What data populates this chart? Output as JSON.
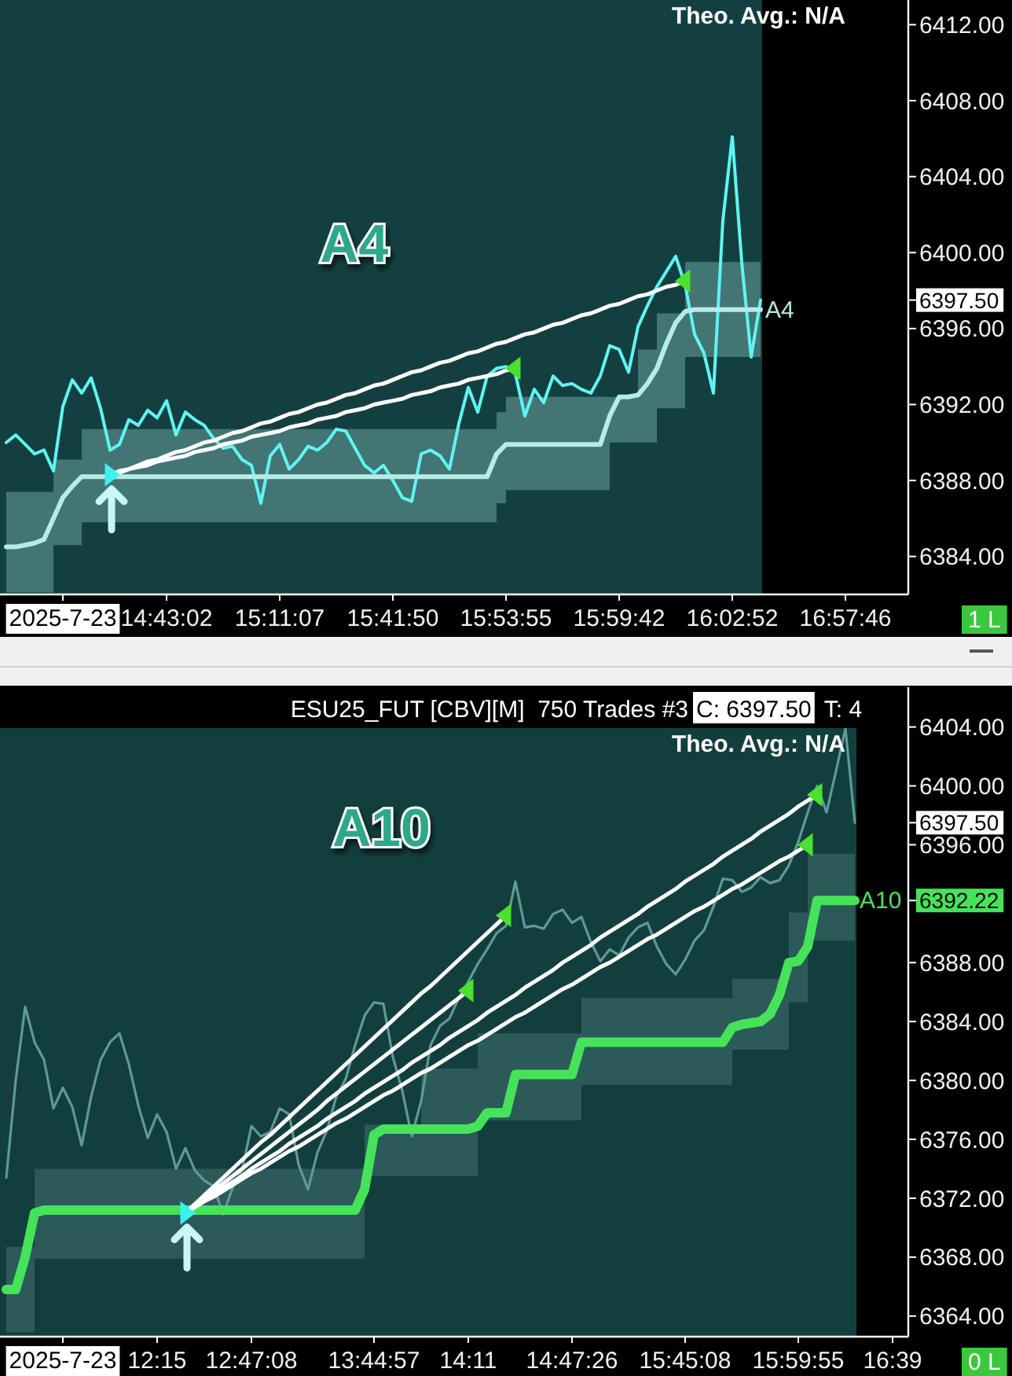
{
  "chart_data": [
    {
      "type": "line",
      "subtitle": "Theo. Avg.: N/A",
      "ylim": [
        6382,
        6413.3
      ],
      "categories": [
        null,
        null,
        null,
        null,
        null,
        null,
        "2025-7-23",
        null,
        null,
        null,
        null,
        null,
        null,
        null,
        null,
        null,
        null,
        "14:43:02",
        null,
        null,
        null,
        null,
        null,
        null,
        null,
        null,
        null,
        null,
        null,
        "15:11:07",
        null,
        null,
        null,
        null,
        null,
        null,
        null,
        null,
        null,
        null,
        null,
        "15:41:50",
        null,
        null,
        null,
        null,
        null,
        null,
        null,
        null,
        null,
        null,
        null,
        "15:53:55",
        null,
        null,
        null,
        null,
        null,
        null,
        null,
        null,
        null,
        null,
        null,
        "15:59:42",
        null,
        null,
        null,
        null,
        null,
        null,
        null,
        null,
        null,
        null,
        null,
        "16:02:52",
        null,
        null,
        null,
        null,
        null,
        null,
        null,
        null,
        null,
        null,
        null,
        "16:57:46",
        null,
        null,
        null,
        null,
        null,
        null
      ],
      "yticks": [
        {
          "value": 6384,
          "label": "6384.00"
        },
        {
          "value": 6388,
          "label": "6388.00"
        },
        {
          "value": 6392,
          "label": "6392.00"
        },
        {
          "value": 6396,
          "label": "6396.00"
        },
        {
          "value": 6397.5,
          "label": "6397.50"
        },
        {
          "value": 6400,
          "label": "6400.00"
        },
        {
          "value": 6404,
          "label": "6404.00"
        },
        {
          "value": 6408,
          "label": "6408.00"
        },
        {
          "value": 6412,
          "label": "6412.00"
        }
      ],
      "series": [
        {
          "color": "#5ff4f4",
          "values": [
            6390.0,
            6390.4,
            6389.9,
            6389.4,
            6389.6,
            6388.5,
            6391.9,
            6393.3,
            6392.6,
            6393.4,
            6391.8,
            6389.6,
            6389.9,
            6391.2,
            6390.9,
            6391.7,
            6391.3,
            6392.2,
            6390.4,
            6391.6,
            6391.2,
            6390.9,
            6390.2,
            6389.7,
            6389.8,
            6389.1,
            6388.8,
            6386.8,
            6389.3,
            6389.9,
            6388.6,
            6389.1,
            6389.8,
            6389.6,
            6390.0,
            6390.7,
            6390.6,
            6389.7,
            6388.8,
            6388.4,
            6388.8,
            6388.0,
            6387.1,
            6386.9,
            6389.4,
            6389.6,
            6389.3,
            6388.6,
            6391.0,
            6392.9,
            6391.6,
            6393.5,
            6393.9,
            6394.0,
            6393.6,
            6391.4,
            6392.8,
            6392.1,
            6393.5,
            6393.0,
            6393.1,
            6392.8,
            6392.6,
            6393.5,
            6395.1,
            6394.9,
            6393.7,
            6396.1,
            6397.2,
            6398.2,
            6399.0,
            6399.8,
            6398.3,
            6395.7,
            6394.7,
            6392.6,
            6401.7,
            6406.1,
            6399.5,
            6394.5,
            6397.5,
            null,
            null,
            null,
            null,
            null,
            null,
            null,
            null,
            null,
            null,
            null,
            null,
            null,
            null,
            null
          ]
        },
        {
          "name": "A4",
          "color": "#b4ece6",
          "values": [
            6384.5,
            6384.5,
            6384.6,
            6384.7,
            6384.9,
            6386.0,
            6387.1,
            6387.7,
            6388.2,
            6388.2,
            6388.2,
            6388.2,
            6388.2,
            6388.2,
            6388.2,
            6388.2,
            6388.2,
            6388.2,
            6388.2,
            6388.2,
            6388.2,
            6388.2,
            6388.2,
            6388.2,
            6388.2,
            6388.2,
            6388.2,
            6388.2,
            6388.2,
            6388.2,
            6388.2,
            6388.2,
            6388.2,
            6388.2,
            6388.2,
            6388.2,
            6388.2,
            6388.2,
            6388.2,
            6388.2,
            6388.2,
            6388.2,
            6388.2,
            6388.2,
            6388.2,
            6388.2,
            6388.2,
            6388.2,
            6388.2,
            6388.2,
            6388.2,
            6388.2,
            6389.4,
            6389.9,
            6389.9,
            6389.9,
            6389.9,
            6389.9,
            6389.9,
            6389.9,
            6389.9,
            6389.9,
            6389.9,
            6389.9,
            6391.4,
            6392.4,
            6392.4,
            6392.5,
            6393.1,
            6393.9,
            6395.2,
            6396.3,
            6396.9,
            6397.0,
            6397.0,
            6397.0,
            6397.0,
            6397.0,
            6397.0,
            6397.0,
            6397.0,
            null,
            null,
            null,
            null,
            null,
            null,
            null,
            null,
            null,
            null,
            null,
            null,
            null,
            null,
            null
          ],
          "upper": [
            6387.4,
            6387.4,
            6387.4,
            6387.4,
            6387.4,
            6389.1,
            6389.1,
            6389.1,
            6390.7,
            6390.7,
            6390.7,
            6390.7,
            6390.7,
            6390.7,
            6390.7,
            6390.7,
            6390.7,
            6390.7,
            6390.7,
            6390.7,
            6390.7,
            6390.7,
            6390.7,
            6390.7,
            6390.7,
            6390.7,
            6390.7,
            6390.7,
            6390.7,
            6390.7,
            6390.7,
            6390.7,
            6390.7,
            6390.7,
            6390.7,
            6390.7,
            6390.7,
            6390.7,
            6390.7,
            6390.7,
            6390.7,
            6390.7,
            6390.7,
            6390.7,
            6390.7,
            6390.7,
            6390.7,
            6390.7,
            6390.7,
            6390.7,
            6390.7,
            6390.7,
            6391.6,
            6392.4,
            6392.4,
            6392.4,
            6392.4,
            6392.4,
            6392.4,
            6392.4,
            6392.4,
            6392.4,
            6392.4,
            6392.4,
            6392.4,
            6392.4,
            6392.4,
            6394.9,
            6394.9,
            6396.8,
            6396.8,
            6396.8,
            6399.5,
            6399.5,
            6399.5,
            6399.5,
            6399.5,
            6399.5,
            6399.5,
            6399.5,
            6399.5,
            null,
            null,
            null,
            null,
            null,
            null,
            null,
            null,
            null,
            null,
            null,
            null,
            null,
            null,
            null
          ],
          "lower": [
            6382.1,
            6382.1,
            6382.1,
            6382.1,
            6382.1,
            6384.6,
            6384.6,
            6384.6,
            6385.8,
            6385.8,
            6385.8,
            6385.8,
            6385.8,
            6385.8,
            6385.8,
            6385.8,
            6385.8,
            6385.8,
            6385.8,
            6385.8,
            6385.8,
            6385.8,
            6385.8,
            6385.8,
            6385.8,
            6385.8,
            6385.8,
            6385.8,
            6385.8,
            6385.8,
            6385.8,
            6385.8,
            6385.8,
            6385.8,
            6385.8,
            6385.8,
            6385.8,
            6385.8,
            6385.8,
            6385.8,
            6385.8,
            6385.8,
            6385.8,
            6385.8,
            6385.8,
            6385.8,
            6385.8,
            6385.8,
            6385.8,
            6385.8,
            6385.8,
            6385.8,
            6386.8,
            6387.5,
            6387.5,
            6387.5,
            6387.5,
            6387.5,
            6387.5,
            6387.5,
            6387.5,
            6387.5,
            6387.5,
            6387.5,
            6390.0,
            6390.0,
            6390.0,
            6390.0,
            6390.0,
            6391.8,
            6391.8,
            6391.8,
            6394.5,
            6394.5,
            6394.5,
            6394.5,
            6394.5,
            6394.5,
            6394.5,
            6394.5,
            6394.5,
            null,
            null,
            null,
            null,
            null,
            null,
            null,
            null,
            null,
            null,
            null,
            null,
            null,
            null,
            null
          ]
        },
        {
          "color": "#ffffff",
          "values": [
            null,
            null,
            null,
            null,
            null,
            null,
            null,
            null,
            null,
            null,
            null,
            6388.3,
            6388.4,
            6388.6,
            6388.7,
            6388.8,
            6389.0,
            6389.1,
            6389.2,
            6389.3,
            6389.5,
            6389.6,
            6389.7,
            6389.9,
            6390.0,
            6390.1,
            6390.3,
            6390.4,
            6390.5,
            6390.6,
            6390.8,
            6390.9,
            6391.0,
            6391.2,
            6391.3,
            6391.4,
            6391.6,
            6391.7,
            6391.8,
            6392.0,
            6392.1,
            6392.2,
            6392.3,
            6392.5,
            6392.6,
            6392.7,
            6392.9,
            6393.0,
            6393.1,
            6393.3,
            6393.4,
            6393.5,
            6393.6,
            6393.8,
            6393.9,
            null,
            null,
            null,
            null,
            null,
            null,
            null,
            null,
            null,
            null,
            null,
            null,
            null,
            null,
            null,
            null,
            null,
            null,
            null,
            null,
            null,
            null,
            null,
            null,
            null,
            null,
            null,
            null,
            null,
            null,
            null,
            null,
            null,
            null,
            null,
            null,
            null,
            null,
            null,
            null,
            null
          ]
        },
        {
          "color": "#ffffff",
          "values": [
            null,
            null,
            null,
            null,
            null,
            null,
            null,
            null,
            null,
            null,
            null,
            6388.3,
            6388.5,
            6388.6,
            6388.8,
            6389.0,
            6389.1,
            6389.3,
            6389.5,
            6389.6,
            6389.8,
            6390.0,
            6390.1,
            6390.3,
            6390.5,
            6390.6,
            6390.8,
            6391.0,
            6391.1,
            6391.3,
            6391.5,
            6391.6,
            6391.8,
            6392.0,
            6392.1,
            6392.3,
            6392.5,
            6392.6,
            6392.8,
            6393.0,
            6393.1,
            6393.3,
            6393.5,
            6393.7,
            6393.8,
            6394.0,
            6394.2,
            6394.3,
            6394.5,
            6394.7,
            6394.8,
            6395.0,
            6395.2,
            6395.3,
            6395.5,
            6395.7,
            6395.8,
            6396.0,
            6396.2,
            6396.3,
            6396.5,
            6396.7,
            6396.8,
            6397.0,
            6397.2,
            6397.3,
            6397.5,
            6397.7,
            6397.8,
            6398.0,
            6398.2,
            6398.3,
            6398.5,
            null,
            null,
            null,
            null,
            null,
            null,
            null,
            null,
            null,
            null,
            null,
            null,
            null,
            null,
            null,
            null,
            null,
            null,
            null,
            null,
            null,
            null,
            null
          ]
        },
        {
          "type": "scatter",
          "color": "#3df0f0",
          "marker": "triangle",
          "values": [
            null,
            null,
            null,
            null,
            null,
            null,
            null,
            null,
            null,
            null,
            null,
            6388.3,
            null,
            null,
            null,
            null,
            null,
            null,
            null,
            null,
            null,
            null,
            null,
            null,
            null,
            null,
            null,
            null,
            null,
            null,
            null,
            null,
            null,
            null,
            null,
            null,
            null,
            null,
            null,
            null,
            null,
            null,
            null,
            null,
            null,
            null,
            null,
            null,
            null,
            null,
            null,
            null,
            null,
            null,
            null,
            null,
            null,
            null,
            null,
            null,
            null,
            null,
            null,
            null,
            null,
            null,
            null,
            null,
            null,
            null,
            null,
            null,
            null,
            null,
            null,
            null,
            null,
            null,
            null,
            null,
            null,
            null,
            null,
            null,
            null,
            null,
            null,
            null,
            null,
            null,
            null,
            null,
            null,
            null,
            null,
            null
          ]
        },
        {
          "type": "scatter",
          "color": "#4be12d",
          "marker": "triangle",
          "values": [
            null,
            null,
            null,
            null,
            null,
            null,
            null,
            null,
            null,
            null,
            null,
            null,
            null,
            null,
            null,
            null,
            null,
            null,
            null,
            null,
            null,
            null,
            null,
            null,
            null,
            null,
            null,
            null,
            null,
            null,
            null,
            null,
            null,
            null,
            null,
            null,
            null,
            null,
            null,
            null,
            null,
            null,
            null,
            null,
            null,
            null,
            null,
            null,
            null,
            null,
            null,
            null,
            null,
            null,
            6393.9,
            null,
            null,
            null,
            null,
            null,
            null,
            null,
            null,
            null,
            null,
            null,
            null,
            null,
            null,
            null,
            null,
            null,
            6398.5,
            null,
            null,
            null,
            null,
            null,
            null,
            null,
            null,
            null,
            null,
            null,
            null,
            null,
            null,
            null,
            null,
            null,
            null,
            null,
            null,
            null,
            null,
            null
          ]
        }
      ],
      "annotations": [
        "A4",
        "1 L"
      ]
    },
    {
      "type": "line",
      "title": "ESU25_FUT [CBV][M]  750 Trades #3",
      "subtitle": "Theo. Avg.: N/A",
      "ylim": [
        6362.6,
        6406.7
      ],
      "categories": [
        null,
        null,
        null,
        null,
        null,
        null,
        "2025-7-23",
        null,
        null,
        null,
        null,
        null,
        null,
        null,
        null,
        null,
        "12:15",
        null,
        null,
        null,
        null,
        null,
        null,
        null,
        null,
        null,
        "12:47:08",
        null,
        null,
        null,
        null,
        null,
        null,
        null,
        null,
        null,
        null,
        null,
        null,
        "13:44:57",
        null,
        null,
        null,
        null,
        null,
        null,
        null,
        null,
        null,
        "14:11",
        null,
        null,
        null,
        null,
        null,
        null,
        null,
        null,
        null,
        null,
        "14:47:26",
        null,
        null,
        null,
        null,
        null,
        null,
        null,
        null,
        null,
        null,
        null,
        "15:45:08",
        null,
        null,
        null,
        null,
        null,
        null,
        null,
        null,
        null,
        null,
        null,
        "15:59:55",
        null,
        null,
        null,
        null,
        null,
        null,
        null,
        null,
        null,
        "16:39",
        null
      ],
      "yticks": [
        {
          "value": 6364,
          "label": "6364.00"
        },
        {
          "value": 6368,
          "label": "6368.00"
        },
        {
          "value": 6372,
          "label": "6372.00"
        },
        {
          "value": 6376,
          "label": "6376.00"
        },
        {
          "value": 6380,
          "label": "6380.00"
        },
        {
          "value": 6384,
          "label": "6384.00"
        },
        {
          "value": 6388,
          "label": "6388.00"
        },
        {
          "value": 6392.22,
          "label": "6392.22"
        },
        {
          "value": 6396,
          "label": "6396.00"
        },
        {
          "value": 6397.5,
          "label": "6397.50"
        },
        {
          "value": 6400,
          "label": "6400.00"
        },
        {
          "value": 6404,
          "label": "6404.00"
        }
      ],
      "series": [
        {
          "color": "#5f9a95",
          "values": [
            6373.4,
            6380.0,
            6385.0,
            6382.6,
            6381.4,
            6378.1,
            6379.5,
            6378.2,
            6375.6,
            6378.9,
            6381.4,
            6382.6,
            6383.2,
            6381.1,
            6378.3,
            6376.1,
            6377.7,
            6376.5,
            6374.0,
            6375.4,
            6373.9,
            6373.2,
            6372.8,
            6370.9,
            6372.7,
            6373.9,
            6376.9,
            6376.2,
            6376.5,
            6378.1,
            6377.7,
            6374.3,
            6372.6,
            6375.1,
            6376.6,
            6378.9,
            6380.1,
            6382.4,
            6384.4,
            6385.3,
            6385.2,
            6381.6,
            6379.3,
            6376.2,
            6378.6,
            6382.4,
            6383.7,
            6384.2,
            6385.6,
            6386.7,
            6387.9,
            6388.9,
            6390.0,
            6390.5,
            6393.5,
            6390.4,
            6390.5,
            6390.3,
            6391.3,
            6391.6,
            6390.7,
            6391.1,
            6389.4,
            6388.1,
            6388.9,
            6388.5,
            6389.7,
            6390.4,
            6390.7,
            6389.1,
            6387.9,
            6387.2,
            6388.2,
            6389.5,
            6390.2,
            6391.8,
            6393.7,
            6393.6,
            6392.8,
            6393.1,
            6393.8,
            6393.4,
            6393.6,
            6394.6,
            6396.2,
            6398.2,
            6400.0,
            6398.2,
            6401.0,
            6403.9,
            6397.5,
            null,
            null,
            null,
            null,
            null
          ]
        },
        {
          "name": "A10",
          "color": "#46e35a",
          "values": [
            6365.8,
            6365.8,
            6368.0,
            6371.0,
            6371.2,
            6371.2,
            6371.2,
            6371.2,
            6371.2,
            6371.2,
            6371.2,
            6371.2,
            6371.2,
            6371.2,
            6371.2,
            6371.2,
            6371.2,
            6371.2,
            6371.2,
            6371.2,
            6371.2,
            6371.2,
            6371.2,
            6371.2,
            6371.2,
            6371.2,
            6371.2,
            6371.2,
            6371.2,
            6371.2,
            6371.2,
            6371.2,
            6371.2,
            6371.2,
            6371.2,
            6371.2,
            6371.2,
            6371.2,
            6372.6,
            6376.3,
            6376.7,
            6376.7,
            6376.7,
            6376.7,
            6376.7,
            6376.7,
            6376.7,
            6376.7,
            6376.7,
            6376.7,
            6376.9,
            6377.8,
            6377.8,
            6377.8,
            6380.4,
            6380.4,
            6380.4,
            6380.4,
            6380.4,
            6380.4,
            6380.4,
            6382.6,
            6382.6,
            6382.6,
            6382.6,
            6382.6,
            6382.6,
            6382.6,
            6382.6,
            6382.6,
            6382.6,
            6382.6,
            6382.6,
            6382.6,
            6382.6,
            6382.6,
            6382.6,
            6383.6,
            6383.8,
            6383.9,
            6384.0,
            6384.5,
            6385.8,
            6388.0,
            6388.1,
            6389.1,
            6392.22,
            6392.22,
            6392.22,
            6392.22,
            6392.22,
            null,
            null,
            null,
            null,
            null
          ],
          "upper": [
            6368.7,
            6368.7,
            6368.7,
            6374.0,
            6374.0,
            6374.0,
            6374.0,
            6374.0,
            6374.0,
            6374.0,
            6374.0,
            6374.0,
            6374.0,
            6374.0,
            6374.0,
            6374.0,
            6374.0,
            6374.0,
            6374.0,
            6374.0,
            6374.0,
            6374.0,
            6374.0,
            6374.0,
            6374.0,
            6374.0,
            6374.0,
            6374.0,
            6374.0,
            6374.0,
            6374.0,
            6374.0,
            6374.0,
            6374.0,
            6374.0,
            6374.0,
            6374.0,
            6374.0,
            6377.0,
            6377.0,
            6377.0,
            6377.0,
            6377.0,
            6377.0,
            6380.8,
            6380.8,
            6380.8,
            6380.8,
            6380.8,
            6380.8,
            6383.2,
            6383.2,
            6383.2,
            6383.2,
            6383.2,
            6383.2,
            6383.2,
            6383.2,
            6383.2,
            6383.2,
            6383.2,
            6385.6,
            6385.6,
            6385.6,
            6385.6,
            6385.6,
            6385.6,
            6385.6,
            6385.6,
            6385.6,
            6385.6,
            6385.6,
            6385.6,
            6385.6,
            6385.6,
            6385.6,
            6385.6,
            6386.9,
            6386.9,
            6386.9,
            6386.9,
            6386.9,
            6386.9,
            6391.4,
            6391.4,
            6395.4,
            6395.4,
            6395.4,
            6395.4,
            6395.4,
            6395.4,
            null,
            null,
            null,
            null,
            null
          ],
          "lower": [
            6362.9,
            6362.9,
            6362.9,
            6367.9,
            6367.9,
            6367.9,
            6367.9,
            6367.9,
            6367.9,
            6367.9,
            6367.9,
            6367.9,
            6367.9,
            6367.9,
            6367.9,
            6367.9,
            6367.9,
            6367.9,
            6367.9,
            6367.9,
            6367.9,
            6367.9,
            6367.9,
            6367.9,
            6367.9,
            6367.9,
            6367.9,
            6367.9,
            6367.9,
            6367.9,
            6367.9,
            6367.9,
            6367.9,
            6367.9,
            6367.9,
            6367.9,
            6367.9,
            6367.9,
            6373.5,
            6373.5,
            6373.5,
            6373.5,
            6373.5,
            6373.5,
            6373.5,
            6373.5,
            6373.5,
            6373.5,
            6373.5,
            6373.5,
            6377.3,
            6377.3,
            6377.3,
            6377.3,
            6377.3,
            6377.3,
            6377.3,
            6377.3,
            6377.3,
            6377.3,
            6377.3,
            6379.7,
            6379.7,
            6379.7,
            6379.7,
            6379.7,
            6379.7,
            6379.7,
            6379.7,
            6379.7,
            6379.7,
            6379.7,
            6379.7,
            6379.7,
            6379.7,
            6379.7,
            6379.7,
            6382.1,
            6382.1,
            6382.1,
            6382.1,
            6382.1,
            6382.1,
            6385.3,
            6385.3,
            6389.5,
            6389.5,
            6389.5,
            6389.5,
            6389.5,
            6389.5,
            null,
            null,
            null,
            null,
            null
          ]
        },
        {
          "color": "#ffffff",
          "values": [
            null,
            null,
            null,
            null,
            null,
            null,
            null,
            null,
            null,
            null,
            null,
            null,
            null,
            null,
            null,
            null,
            null,
            null,
            null,
            6371.0,
            6371.5,
            6372.0,
            6372.5,
            6373.0,
            6373.5,
            6374.0,
            6374.5,
            6375.0,
            6375.5,
            6376.0,
            6376.5,
            6377.0,
            6377.5,
            6378.0,
            6378.6,
            6379.1,
            6379.6,
            6380.1,
            6380.6,
            6381.1,
            6381.6,
            6382.1,
            6382.6,
            6383.1,
            6383.6,
            6384.1,
            6384.6,
            6385.1,
            6385.6,
            6386.1,
            null,
            null,
            null,
            null,
            null,
            null,
            null,
            null,
            null,
            null,
            null,
            null,
            null,
            null,
            null,
            null,
            null,
            null,
            null,
            null,
            null,
            null,
            null,
            null,
            null,
            null,
            null,
            null,
            null,
            null,
            null,
            null,
            null,
            null,
            null,
            null,
            null,
            null,
            null,
            null,
            null,
            null,
            null,
            null,
            null,
            null
          ]
        },
        {
          "color": "#ffffff",
          "values": [
            null,
            null,
            null,
            null,
            null,
            null,
            null,
            null,
            null,
            null,
            null,
            null,
            null,
            null,
            null,
            null,
            null,
            null,
            null,
            6371.0,
            6371.6,
            6372.2,
            6372.8,
            6373.4,
            6374.0,
            6374.6,
            6375.2,
            6375.8,
            6376.3,
            6376.9,
            6377.5,
            6378.1,
            6378.7,
            6379.3,
            6379.9,
            6380.5,
            6381.1,
            6381.7,
            6382.3,
            6382.9,
            6383.5,
            6384.1,
            6384.7,
            6385.3,
            6385.9,
            6386.4,
            6387.0,
            6387.6,
            6388.2,
            6388.8,
            6389.4,
            6390.0,
            6390.6,
            6391.2,
            null,
            null,
            null,
            null,
            null,
            null,
            null,
            null,
            null,
            null,
            null,
            null,
            null,
            null,
            null,
            null,
            null,
            null,
            null,
            null,
            null,
            null,
            null,
            null,
            null,
            null,
            null,
            null,
            null,
            null,
            null,
            null,
            null,
            null,
            null,
            null,
            null,
            null,
            null,
            null,
            null,
            null
          ]
        },
        {
          "color": "#ffffff",
          "values": [
            null,
            null,
            null,
            null,
            null,
            null,
            null,
            null,
            null,
            null,
            null,
            null,
            null,
            null,
            null,
            null,
            null,
            null,
            null,
            6371.0,
            6371.4,
            6371.8,
            6372.1,
            6372.5,
            6372.9,
            6373.3,
            6373.7,
            6374.0,
            6374.4,
            6374.8,
            6375.2,
            6375.5,
            6375.9,
            6376.3,
            6376.7,
            6377.1,
            6377.4,
            6377.8,
            6378.2,
            6378.6,
            6379.0,
            6379.3,
            6379.7,
            6380.1,
            6380.5,
            6380.8,
            6381.2,
            6381.6,
            6382.0,
            6382.4,
            6382.7,
            6383.1,
            6383.5,
            6383.9,
            6384.3,
            6384.6,
            6385.0,
            6385.4,
            6385.8,
            6386.2,
            6386.5,
            6386.9,
            6387.3,
            6387.7,
            6388.0,
            6388.4,
            6388.8,
            6389.2,
            6389.6,
            6389.9,
            6390.3,
            6390.7,
            6391.1,
            6391.5,
            6391.8,
            6392.2,
            6392.6,
            6393.0,
            6393.3,
            6393.7,
            6394.1,
            6394.5,
            6394.9,
            6395.2,
            6395.6,
            6396.0,
            null,
            null,
            null,
            null,
            null,
            null,
            null,
            null,
            null,
            null
          ]
        },
        {
          "color": "#ffffff",
          "values": [
            null,
            null,
            null,
            null,
            null,
            null,
            null,
            null,
            null,
            null,
            null,
            null,
            null,
            null,
            null,
            null,
            null,
            null,
            null,
            6371.0,
            6371.4,
            6371.8,
            6372.3,
            6372.7,
            6373.1,
            6373.5,
            6374.0,
            6374.4,
            6374.8,
            6375.2,
            6375.7,
            6376.1,
            6376.5,
            6376.9,
            6377.4,
            6377.8,
            6378.2,
            6378.6,
            6379.1,
            6379.5,
            6379.9,
            6380.3,
            6380.7,
            6381.2,
            6381.6,
            6382.0,
            6382.4,
            6382.9,
            6383.3,
            6383.7,
            6384.1,
            6384.6,
            6385.0,
            6385.4,
            6385.8,
            6386.3,
            6386.7,
            6387.1,
            6387.5,
            6388.0,
            6388.4,
            6388.8,
            6389.2,
            6389.7,
            6390.1,
            6390.5,
            6390.9,
            6391.3,
            6391.8,
            6392.2,
            6392.6,
            6393.0,
            6393.5,
            6393.9,
            6394.3,
            6394.7,
            6395.2,
            6395.6,
            6396.0,
            6396.4,
            6396.9,
            6397.3,
            6397.7,
            6398.1,
            6398.6,
            6399.0,
            6399.4,
            null,
            null,
            null,
            null,
            null,
            null,
            null,
            null,
            null
          ]
        },
        {
          "type": "scatter",
          "color": "#3df0f0",
          "marker": "triangle",
          "values": [
            null,
            null,
            null,
            null,
            null,
            null,
            null,
            null,
            null,
            null,
            null,
            null,
            null,
            null,
            null,
            null,
            null,
            null,
            null,
            6371.0,
            null,
            null,
            null,
            null,
            null,
            null,
            null,
            null,
            null,
            null,
            null,
            null,
            null,
            null,
            null,
            null,
            null,
            null,
            null,
            null,
            null,
            null,
            null,
            null,
            null,
            null,
            null,
            null,
            null,
            null,
            null,
            null,
            null,
            null,
            null,
            null,
            null,
            null,
            null,
            null,
            null,
            null,
            null,
            null,
            null,
            null,
            null,
            null,
            null,
            null,
            null,
            null,
            null,
            null,
            null,
            null,
            null,
            null,
            null,
            null,
            null,
            null,
            null,
            null,
            null,
            null,
            null,
            null,
            null,
            null,
            null,
            null,
            null,
            null,
            null,
            null
          ]
        },
        {
          "type": "scatter",
          "color": "#4be12d",
          "marker": "triangle",
          "values": [
            null,
            null,
            null,
            null,
            null,
            null,
            null,
            null,
            null,
            null,
            null,
            null,
            null,
            null,
            null,
            null,
            null,
            null,
            null,
            null,
            null,
            null,
            null,
            null,
            null,
            null,
            null,
            null,
            null,
            null,
            null,
            null,
            null,
            null,
            null,
            null,
            null,
            null,
            null,
            null,
            null,
            null,
            null,
            null,
            null,
            null,
            null,
            null,
            null,
            6386.1,
            null,
            null,
            null,
            6391.2,
            null,
            null,
            null,
            null,
            null,
            null,
            null,
            null,
            null,
            null,
            null,
            null,
            null,
            null,
            null,
            null,
            null,
            null,
            null,
            null,
            null,
            null,
            null,
            null,
            null,
            null,
            null,
            null,
            null,
            null,
            null,
            6396.0,
            6399.4,
            null,
            null,
            null,
            null,
            null,
            null,
            null,
            null,
            null
          ]
        }
      ],
      "annotations": [
        "A10",
        "C: 6397.50",
        "T: 4",
        "0 L"
      ]
    }
  ]
}
